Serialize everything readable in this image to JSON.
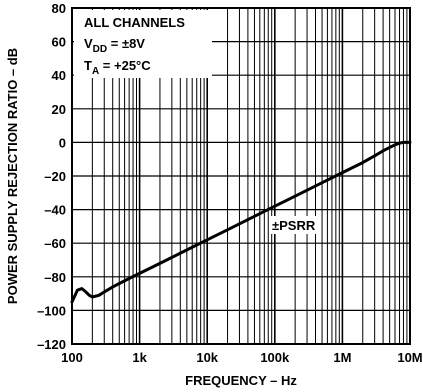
{
  "chart_data": {
    "type": "line",
    "title": "",
    "xlabel": "FREQUENCY – Hz",
    "ylabel": "POWER SUPPLY REJECTION RATIO – dB",
    "xscale": "log",
    "xlim": [
      100,
      10000000
    ],
    "ylim": [
      -120,
      80
    ],
    "grid": true,
    "x_tick_labels": [
      "100",
      "1k",
      "10k",
      "100k",
      "1M",
      "10M"
    ],
    "y_tick_labels": [
      "80",
      "60",
      "40",
      "20",
      "0",
      "–20",
      "–40",
      "–60",
      "–80",
      "–100",
      "–120"
    ],
    "annotation_lines": [
      "ALL CHANNELS",
      "V",
      "DD",
      " = ±8V",
      "T",
      "A",
      " = +25°C"
    ],
    "series": [
      {
        "name": "±PSRR",
        "x": [
          100,
          120,
          140,
          160,
          180,
          200,
          250,
          300,
          400,
          500,
          700,
          1000,
          2000,
          5000,
          10000,
          20000,
          50000,
          100000,
          200000,
          500000,
          1000000,
          2000000,
          3000000,
          4000000,
          5000000,
          6000000,
          7000000,
          8000000,
          9000000,
          10000000
        ],
        "y": [
          -95,
          -88,
          -87,
          -89,
          -91,
          -92,
          -91,
          -89,
          -86,
          -84,
          -81,
          -78,
          -72,
          -64,
          -58,
          -52,
          -44,
          -38,
          -32,
          -24,
          -18,
          -12,
          -8,
          -5,
          -3,
          -1.5,
          -0.5,
          0,
          0,
          0
        ]
      }
    ]
  }
}
